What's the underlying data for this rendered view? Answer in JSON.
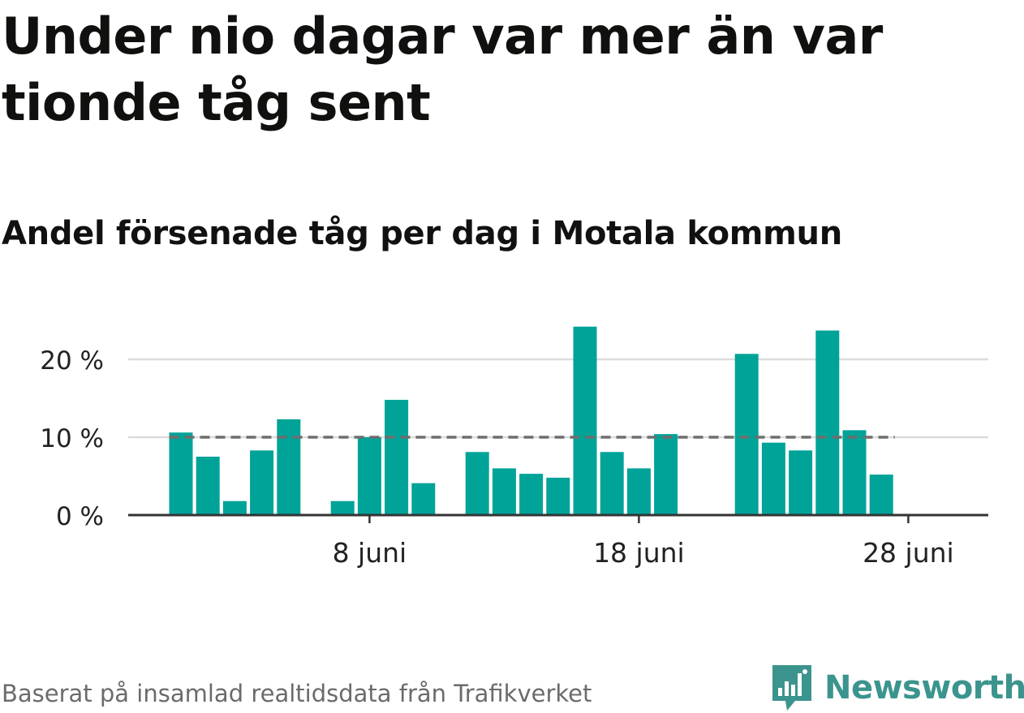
{
  "title": "Under nio dagar var mer än var tionde tåg sent",
  "subtitle": "Andel försenade tåg per dag i Motala kommun",
  "footer": "Baserat på insamlad realtidsdata från Trafikverket",
  "brand": {
    "name": "Newsworthy",
    "icon": "newsworthy-logo-icon",
    "color": "#3b948d"
  },
  "chart_data": {
    "type": "bar",
    "x_type": "date",
    "x": [
      "2021-06-01",
      "2021-06-02",
      "2021-06-03",
      "2021-06-04",
      "2021-06-05",
      "2021-06-06",
      "2021-06-07",
      "2021-06-08",
      "2021-06-09",
      "2021-06-10",
      "2021-06-11",
      "2021-06-12",
      "2021-06-13",
      "2021-06-14",
      "2021-06-15",
      "2021-06-16",
      "2021-06-17",
      "2021-06-18",
      "2021-06-19",
      "2021-06-20",
      "2021-06-21",
      "2021-06-22",
      "2021-06-23",
      "2021-06-24",
      "2021-06-25",
      "2021-06-26",
      "2021-06-27",
      "2021-06-28",
      "2021-06-29"
    ],
    "values": [
      10.6,
      7.5,
      1.8,
      8.3,
      12.3,
      null,
      1.8,
      10.0,
      14.8,
      4.1,
      null,
      8.1,
      6.0,
      5.3,
      4.8,
      24.2,
      8.1,
      6.0,
      10.4,
      null,
      null,
      20.7,
      9.3,
      8.3,
      23.7,
      10.9,
      5.2,
      null,
      null
    ],
    "threshold": 10,
    "y_ticks": [
      0,
      10,
      20
    ],
    "y_tick_labels": [
      "0 %",
      "10 %",
      "20 %"
    ],
    "x_tick_labels": [
      {
        "date": "2021-06-08",
        "label": "8 juni"
      },
      {
        "date": "2021-06-18",
        "label": "18 juni"
      },
      {
        "date": "2021-06-28",
        "label": "28 juni"
      }
    ],
    "ylim": [
      0,
      25
    ],
    "grid": true,
    "colors": {
      "bar": "#00a398",
      "threshold": "#6e6e6e",
      "grid": "#dcdcdc",
      "axis": "#333333"
    }
  }
}
